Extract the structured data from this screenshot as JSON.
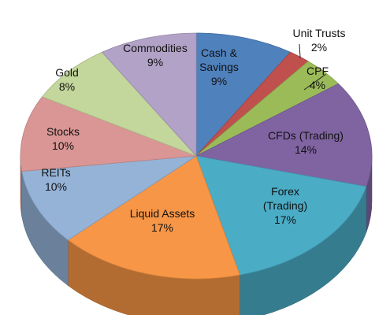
{
  "chart_data": {
    "type": "pie",
    "style": "3d",
    "title": "",
    "legend": "none",
    "slices": [
      {
        "label": "Cash & Savings",
        "value": 9,
        "display": "9%",
        "color": "#4F81BD"
      },
      {
        "label": "Unit Trusts",
        "value": 2,
        "display": "2%",
        "color": "#C0504D"
      },
      {
        "label": "CPF",
        "value": 4,
        "display": "4%",
        "color": "#9BBB59"
      },
      {
        "label": "CFDs (Trading)",
        "value": 14,
        "display": "14%",
        "color": "#8064A2"
      },
      {
        "label": "Forex (Trading)",
        "value": 17,
        "display": "17%",
        "color": "#4BACC6"
      },
      {
        "label": "Liquid Assets",
        "value": 17,
        "display": "17%",
        "color": "#F79646"
      },
      {
        "label": "REITs",
        "value": 10,
        "display": "10%",
        "color": "#95B3D7"
      },
      {
        "label": "Stocks",
        "value": 10,
        "display": "10%",
        "color": "#D99694"
      },
      {
        "label": "Gold",
        "value": 8,
        "display": "8%",
        "color": "#C3D69B"
      },
      {
        "label": "Commodities",
        "value": 9,
        "display": "9%",
        "color": "#B2A2C7"
      }
    ]
  }
}
